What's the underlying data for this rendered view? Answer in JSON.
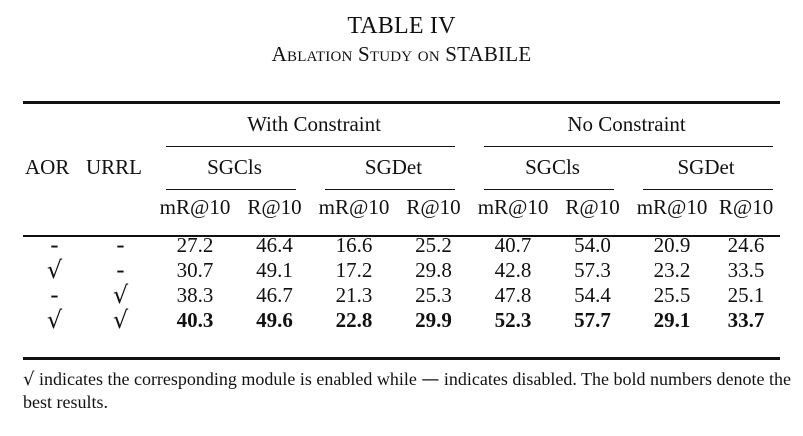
{
  "caption": {
    "label": "TABLE IV",
    "title": "Ablation Study on STABILE"
  },
  "table": {
    "columns": {
      "aor": "AOR",
      "urrl": "URRL",
      "group_with": "With Constraint",
      "group_no": "No Constraint",
      "sub_sgcls": "SGCls",
      "sub_sgdet": "SGDet",
      "metric_mr": "mR@10",
      "metric_r": "R@10"
    },
    "rows": [
      {
        "aor": "-",
        "urrl": "-",
        "values": [
          "27.2",
          "46.4",
          "16.6",
          "25.2",
          "40.7",
          "54.0",
          "20.9",
          "24.6"
        ],
        "bold": false
      },
      {
        "aor": "√",
        "urrl": "-",
        "values": [
          "30.7",
          "49.1",
          "17.2",
          "29.8",
          "42.8",
          "57.3",
          "23.2",
          "33.5"
        ],
        "bold": false
      },
      {
        "aor": "-",
        "urrl": "√",
        "values": [
          "38.3",
          "46.7",
          "21.3",
          "25.3",
          "47.8",
          "54.4",
          "25.5",
          "25.1"
        ],
        "bold": false
      },
      {
        "aor": "√",
        "urrl": "√",
        "values": [
          "40.3",
          "49.6",
          "22.8",
          "29.9",
          "52.3",
          "57.7",
          "29.1",
          "33.7"
        ],
        "bold": true
      }
    ]
  },
  "footnote": {
    "check_glyph": "√",
    "text_a": "indicates the corresponding module is enabled while",
    "dash_glyph": "—",
    "text_b": "indicates disabled. The bold numbers denote the best results."
  }
}
